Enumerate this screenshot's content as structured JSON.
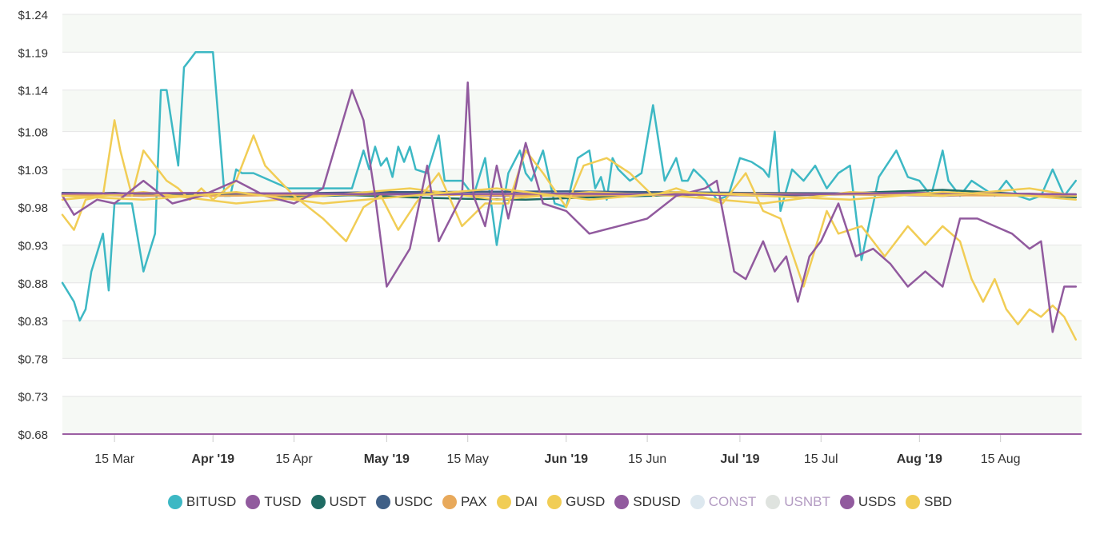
{
  "chart_data": {
    "type": "line",
    "y_tick_labels": [
      "$1.24",
      "$1.19",
      "$1.14",
      "$1.08",
      "$1.03",
      "$0.98",
      "$0.93",
      "$0.88",
      "$0.83",
      "$0.78",
      "$0.73",
      "$0.68"
    ],
    "y_ticks": [
      1.24,
      1.19,
      1.14,
      1.085,
      1.035,
      0.985,
      0.935,
      0.885,
      0.835,
      0.785,
      0.735,
      0.685
    ],
    "ylim": [
      0.685,
      1.24
    ],
    "xlim": [
      "2019-03-06",
      "2019-08-29"
    ],
    "x_ticks": [
      {
        "label": "15 Mar",
        "date": "2019-03-15",
        "bold": false
      },
      {
        "label": "Apr '19",
        "date": "2019-04-01",
        "bold": true
      },
      {
        "label": "15 Apr",
        "date": "2019-04-15",
        "bold": false
      },
      {
        "label": "May '19",
        "date": "2019-05-01",
        "bold": true
      },
      {
        "label": "15 May",
        "date": "2019-05-15",
        "bold": false
      },
      {
        "label": "Jun '19",
        "date": "2019-06-01",
        "bold": true
      },
      {
        "label": "15 Jun",
        "date": "2019-06-15",
        "bold": false
      },
      {
        "label": "Jul '19",
        "date": "2019-07-01",
        "bold": true
      },
      {
        "label": "15 Jul",
        "date": "2019-07-15",
        "bold": false
      },
      {
        "label": "Aug '19",
        "date": "2019-08-01",
        "bold": true
      },
      {
        "label": "15 Aug",
        "date": "2019-08-15",
        "bold": false
      }
    ],
    "grid": true,
    "legend_position": "bottom",
    "series": [
      {
        "name": "BITUSD",
        "color": "#3db8c4",
        "visible": true,
        "x": [
          "2019-03-06",
          "2019-03-08",
          "2019-03-09",
          "2019-03-10",
          "2019-03-11",
          "2019-03-13",
          "2019-03-14",
          "2019-03-15",
          "2019-03-16",
          "2019-03-18",
          "2019-03-20",
          "2019-03-22",
          "2019-03-23",
          "2019-03-24",
          "2019-03-26",
          "2019-03-27",
          "2019-03-28",
          "2019-03-29",
          "2019-03-31",
          "2019-04-01",
          "2019-04-03",
          "2019-04-04",
          "2019-04-05",
          "2019-04-06",
          "2019-04-08",
          "2019-04-14",
          "2019-04-25",
          "2019-04-27",
          "2019-04-28",
          "2019-04-29",
          "2019-04-30",
          "2019-05-01",
          "2019-05-02",
          "2019-05-03",
          "2019-05-04",
          "2019-05-05",
          "2019-05-06",
          "2019-05-08",
          "2019-05-10",
          "2019-05-11",
          "2019-05-14",
          "2019-05-16",
          "2019-05-18",
          "2019-05-20",
          "2019-05-22",
          "2019-05-24",
          "2019-05-25",
          "2019-05-26",
          "2019-05-28",
          "2019-05-30",
          "2019-06-01",
          "2019-06-03",
          "2019-06-05",
          "2019-06-06",
          "2019-06-07",
          "2019-06-08",
          "2019-06-09",
          "2019-06-10",
          "2019-06-12",
          "2019-06-14",
          "2019-06-16",
          "2019-06-18",
          "2019-06-20",
          "2019-06-21",
          "2019-06-22",
          "2019-06-23",
          "2019-06-25",
          "2019-06-27",
          "2019-06-29",
          "2019-07-01",
          "2019-07-03",
          "2019-07-05",
          "2019-07-06",
          "2019-07-07",
          "2019-07-08",
          "2019-07-10",
          "2019-07-12",
          "2019-07-14",
          "2019-07-16",
          "2019-07-18",
          "2019-07-20",
          "2019-07-22",
          "2019-07-25",
          "2019-07-28",
          "2019-07-30",
          "2019-08-01",
          "2019-08-03",
          "2019-08-05",
          "2019-08-06",
          "2019-08-08",
          "2019-08-10",
          "2019-08-12",
          "2019-08-14",
          "2019-08-16",
          "2019-08-18",
          "2019-08-20",
          "2019-08-22",
          "2019-08-24",
          "2019-08-26",
          "2019-08-28"
        ],
        "y": [
          0.885,
          0.86,
          0.835,
          0.85,
          0.9,
          0.95,
          0.875,
          0.99,
          0.99,
          0.99,
          0.9,
          0.95,
          1.14,
          1.14,
          1.04,
          1.17,
          1.18,
          1.19,
          1.19,
          1.19,
          1.0,
          1.0,
          1.035,
          1.03,
          1.03,
          1.01,
          1.01,
          1.06,
          1.035,
          1.065,
          1.04,
          1.05,
          1.025,
          1.065,
          1.045,
          1.065,
          1.035,
          1.03,
          1.08,
          1.02,
          1.02,
          1.0,
          1.05,
          0.935,
          1.03,
          1.06,
          1.03,
          1.02,
          1.06,
          0.99,
          0.985,
          1.05,
          1.06,
          1.01,
          1.025,
          0.995,
          1.05,
          1.035,
          1.02,
          1.03,
          1.12,
          1.02,
          1.05,
          1.02,
          1.02,
          1.035,
          1.02,
          0.995,
          1.0,
          1.05,
          1.045,
          1.035,
          1.025,
          1.085,
          0.98,
          1.035,
          1.02,
          1.04,
          1.01,
          1.03,
          1.04,
          0.915,
          1.025,
          1.06,
          1.025,
          1.02,
          1.0,
          1.06,
          1.02,
          1.0,
          1.02,
          1.01,
          1.0,
          1.02,
          1.0,
          0.995,
          1.0,
          1.035,
          1.0,
          1.02
        ]
      },
      {
        "name": "TUSD",
        "color": "#915a9e",
        "visible": true,
        "x": [
          "2019-03-06",
          "2019-03-20",
          "2019-04-05",
          "2019-04-20",
          "2019-05-05",
          "2019-05-20",
          "2019-06-05",
          "2019-06-20",
          "2019-07-05",
          "2019-07-20",
          "2019-08-05",
          "2019-08-20",
          "2019-08-28"
        ],
        "y": [
          1.002,
          1.0,
          1.003,
          1.0,
          1.004,
          1.0,
          1.002,
          1.003,
          1.0,
          1.002,
          1.0,
          1.003,
          1.0
        ]
      },
      {
        "name": "USDT",
        "color": "#1f6b63",
        "visible": true,
        "x": [
          "2019-03-06",
          "2019-03-15",
          "2019-03-25",
          "2019-04-05",
          "2019-04-15",
          "2019-04-25",
          "2019-05-05",
          "2019-05-15",
          "2019-05-25",
          "2019-06-05",
          "2019-06-15",
          "2019-06-25",
          "2019-07-05",
          "2019-07-15",
          "2019-07-25",
          "2019-08-05",
          "2019-08-15",
          "2019-08-28"
        ],
        "y": [
          1.002,
          1.004,
          1.0,
          1.003,
          0.999,
          1.001,
          0.998,
          0.996,
          0.995,
          0.998,
          1.0,
          1.002,
          1.001,
          1.002,
          1.005,
          1.008,
          1.004,
          0.998
        ]
      },
      {
        "name": "USDC",
        "color": "#3f5f86",
        "visible": true,
        "x": [
          "2019-03-06",
          "2019-04-01",
          "2019-05-01",
          "2019-06-01",
          "2019-07-01",
          "2019-08-01",
          "2019-08-28"
        ],
        "y": [
          1.004,
          1.002,
          1.005,
          1.006,
          1.004,
          1.003,
          1.002
        ]
      },
      {
        "name": "PAX",
        "color": "#e8a95b",
        "visible": true,
        "x": [
          "2019-03-06",
          "2019-04-01",
          "2019-05-01",
          "2019-06-01",
          "2019-07-01",
          "2019-08-01",
          "2019-08-28"
        ],
        "y": [
          1.001,
          1.0,
          1.002,
          1.0,
          1.003,
          1.001,
          1.0
        ]
      },
      {
        "name": "DAI",
        "color": "#f1cd55",
        "visible": true,
        "x": [
          "2019-03-06",
          "2019-03-08",
          "2019-03-10",
          "2019-03-13",
          "2019-03-15",
          "2019-03-16",
          "2019-03-18",
          "2019-03-20",
          "2019-03-22",
          "2019-03-24",
          "2019-03-26",
          "2019-03-28",
          "2019-03-30",
          "2019-04-01",
          "2019-04-05",
          "2019-04-08",
          "2019-04-10",
          "2019-04-15",
          "2019-04-20",
          "2019-04-24",
          "2019-04-27",
          "2019-04-30",
          "2019-05-03",
          "2019-05-06",
          "2019-05-10",
          "2019-05-14",
          "2019-05-18",
          "2019-05-22",
          "2019-05-25",
          "2019-05-28",
          "2019-06-01",
          "2019-06-04",
          "2019-06-08",
          "2019-06-12",
          "2019-06-16",
          "2019-06-20",
          "2019-06-24",
          "2019-06-28",
          "2019-07-02",
          "2019-07-05",
          "2019-07-08",
          "2019-07-12",
          "2019-07-16",
          "2019-07-18",
          "2019-07-22",
          "2019-07-26",
          "2019-07-30",
          "2019-08-02",
          "2019-08-05",
          "2019-08-08",
          "2019-08-10",
          "2019-08-12",
          "2019-08-14",
          "2019-08-16",
          "2019-08-18",
          "2019-08-20",
          "2019-08-22",
          "2019-08-24",
          "2019-08-26",
          "2019-08-28"
        ],
        "y": [
          0.975,
          0.955,
          0.995,
          1.0,
          1.1,
          1.06,
          1.0,
          1.06,
          1.04,
          1.02,
          1.01,
          0.995,
          1.01,
          0.995,
          1.02,
          1.08,
          1.04,
          1.0,
          0.97,
          0.94,
          0.985,
          1.0,
          0.955,
          0.99,
          1.03,
          0.96,
          0.99,
          0.99,
          1.06,
          1.03,
          0.985,
          1.04,
          1.05,
          1.03,
          1.0,
          1.01,
          1.0,
          0.99,
          1.03,
          0.98,
          0.97,
          0.88,
          0.98,
          0.95,
          0.96,
          0.92,
          0.96,
          0.935,
          0.96,
          0.94,
          0.89,
          0.86,
          0.89,
          0.85,
          0.83,
          0.85,
          0.84,
          0.855,
          0.84,
          0.81
        ]
      },
      {
        "name": "GUSD",
        "color": "#f1cd55",
        "visible": true,
        "x": [
          "2019-03-06",
          "2019-03-20",
          "2019-04-05",
          "2019-04-20",
          "2019-05-05",
          "2019-05-20",
          "2019-06-05",
          "2019-06-20",
          "2019-07-05",
          "2019-07-20",
          "2019-08-05",
          "2019-08-20",
          "2019-08-28"
        ],
        "y": [
          0.995,
          1.005,
          0.99,
          1.0,
          1.01,
          0.995,
          1.005,
          1.0,
          0.99,
          1.005,
          1.0,
          1.01,
          1.0
        ]
      },
      {
        "name": "SDUSD",
        "color": "#915a9e",
        "visible": true,
        "x": [
          "2019-03-06",
          "2019-03-08",
          "2019-03-12",
          "2019-03-15",
          "2019-03-20",
          "2019-03-25",
          "2019-03-30",
          "2019-04-05",
          "2019-04-10",
          "2019-04-15",
          "2019-04-20",
          "2019-04-25",
          "2019-04-27",
          "2019-04-29",
          "2019-05-01",
          "2019-05-05",
          "2019-05-08",
          "2019-05-10",
          "2019-05-12",
          "2019-05-14",
          "2019-05-15",
          "2019-05-16",
          "2019-05-18",
          "2019-05-20",
          "2019-05-22",
          "2019-05-25",
          "2019-05-28",
          "2019-06-01",
          "2019-06-05",
          "2019-06-10",
          "2019-06-15",
          "2019-06-20",
          "2019-06-25",
          "2019-06-27",
          "2019-06-30",
          "2019-07-02",
          "2019-07-05",
          "2019-07-07",
          "2019-07-09",
          "2019-07-11",
          "2019-07-13",
          "2019-07-15",
          "2019-07-18",
          "2019-07-21",
          "2019-07-24",
          "2019-07-27",
          "2019-07-30",
          "2019-08-02",
          "2019-08-05",
          "2019-08-08",
          "2019-08-11",
          "2019-08-14",
          "2019-08-17",
          "2019-08-20",
          "2019-08-22",
          "2019-08-24",
          "2019-08-26",
          "2019-08-28"
        ],
        "y": [
          1.0,
          0.975,
          0.995,
          0.99,
          1.02,
          0.99,
          1.0,
          1.02,
          1.0,
          0.99,
          1.01,
          1.14,
          1.1,
          1.0,
          0.88,
          0.93,
          1.04,
          0.94,
          0.97,
          1.0,
          1.15,
          1.0,
          0.96,
          1.04,
          0.97,
          1.07,
          0.99,
          0.98,
          0.95,
          0.96,
          0.97,
          1.0,
          1.01,
          1.02,
          0.9,
          0.89,
          0.94,
          0.9,
          0.92,
          0.86,
          0.92,
          0.94,
          0.99,
          0.92,
          0.93,
          0.91,
          0.88,
          0.9,
          0.88,
          0.97,
          0.97,
          0.96,
          0.95,
          0.93,
          0.94,
          0.82,
          0.88,
          0.88
        ]
      },
      {
        "name": "CONST",
        "color": "#dde8ef",
        "visible": false,
        "x": [],
        "y": []
      },
      {
        "name": "USNBT",
        "color": "#dfe3df",
        "visible": false,
        "x": [],
        "y": []
      },
      {
        "name": "USDS",
        "color": "#915a9e",
        "visible": true,
        "x": [
          "2019-03-06",
          "2019-04-01",
          "2019-05-01",
          "2019-06-01",
          "2019-07-01",
          "2019-08-01",
          "2019-08-28"
        ],
        "y": [
          1.003,
          1.004,
          1.002,
          1.003,
          1.001,
          1.004,
          1.002
        ]
      },
      {
        "name": "SBD",
        "color": "#f1cd55",
        "visible": true,
        "x": [
          "2019-03-06",
          "2019-03-20",
          "2019-04-05",
          "2019-04-20",
          "2019-05-05",
          "2019-05-20",
          "2019-06-05",
          "2019-06-20",
          "2019-07-05",
          "2019-07-20",
          "2019-08-05",
          "2019-08-20",
          "2019-08-28"
        ],
        "y": [
          1.0,
          0.995,
          1.005,
          0.99,
          1.0,
          1.01,
          0.995,
          1.005,
          1.0,
          0.995,
          1.005,
          1.0,
          0.995
        ]
      }
    ]
  },
  "colors": {
    "plot_band_light": "#f6f9f5",
    "plot_band_white": "#ffffff",
    "grid": "#e6e6e6",
    "x_axis_line": "#9b5ea3"
  }
}
